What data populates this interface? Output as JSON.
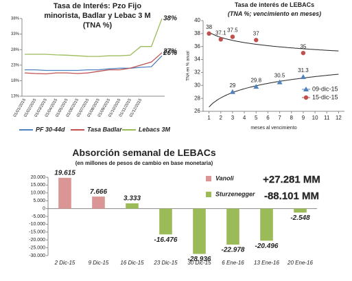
{
  "chart_data": [
    {
      "type": "line",
      "title": "Tasa de Interés: Pzo Fijo minorista, Badlar y Lebac 3 M (TNA %)",
      "categories": [
        "01/01/2015",
        "01/02/2015",
        "01/03/2015",
        "01/04/2015",
        "01/05/2015",
        "01/06/2015",
        "01/07/2015",
        "01/08/2015",
        "01/09/2015",
        "01/10/2015",
        "01/11/2015",
        "01/12/2015",
        null,
        null
      ],
      "series": [
        {
          "name": "PF 30-44d",
          "color": "#4f81bd",
          "values": [
            21.5,
            21.5,
            21.3,
            21.3,
            21.3,
            21.3,
            21.5,
            21.5,
            21.8,
            22,
            22,
            22.3,
            22.5,
            26
          ],
          "value_labels": [
            null,
            null,
            null,
            null,
            null,
            null,
            null,
            null,
            null,
            null,
            null,
            null,
            null,
            "26%"
          ]
        },
        {
          "name": "Tasa Badlar",
          "color": "#c0504d",
          "values": [
            20.5,
            20.3,
            20.2,
            20.5,
            20.5,
            20.3,
            20.5,
            21,
            21.5,
            21.5,
            22,
            23,
            24,
            27
          ],
          "value_labels": [
            null,
            null,
            null,
            null,
            null,
            null,
            null,
            null,
            null,
            null,
            null,
            null,
            null,
            "27%"
          ]
        },
        {
          "name": "Lebacs 3M",
          "color": "#9bbb59",
          "values": [
            26.5,
            26.5,
            26.5,
            26.3,
            26.2,
            26,
            25.8,
            25.8,
            26,
            26,
            26.2,
            29,
            29,
            38
          ],
          "value_labels": [
            null,
            null,
            null,
            null,
            null,
            null,
            null,
            null,
            null,
            null,
            null,
            null,
            null,
            "38%"
          ]
        }
      ],
      "ylim": [
        13,
        38
      ],
      "yticks": [
        {
          "value": 13,
          "label": "13%"
        },
        {
          "value": 18,
          "label": "18%"
        },
        {
          "value": 23,
          "label": "23%"
        },
        {
          "value": 28,
          "label": "28%"
        },
        {
          "value": 33,
          "label": "33%"
        },
        {
          "value": 38,
          "label": "38%"
        }
      ],
      "grid": false,
      "legend": "bottom"
    },
    {
      "type": "scatter",
      "title": "Tasa de interés de LEBACs",
      "subtitle": "(TNA %; vencimiento en meses)",
      "x_label": "meses al vencimiento",
      "y_label": "TNA en % anual",
      "series": [
        {
          "name": "09-dic-15",
          "color": "#4f81bd",
          "marker": "triangle",
          "trendline": "log",
          "x": [
            3,
            5,
            7,
            9
          ],
          "values": [
            29,
            29.8,
            30.5,
            31.3
          ]
        },
        {
          "name": "15-dic-15",
          "color": "#c0504d",
          "marker": "circle",
          "trendline": "log",
          "x": [
            1,
            2,
            3,
            5,
            9
          ],
          "values": [
            38,
            37.1,
            37.5,
            37,
            35
          ]
        }
      ],
      "xlim": [
        0.5,
        12.5
      ],
      "xticks": [
        1,
        2,
        3,
        4,
        5,
        6,
        7,
        8,
        9,
        10,
        11,
        12
      ],
      "ylim": [
        26,
        40
      ],
      "yticks": [
        26,
        28,
        30,
        32,
        34,
        36,
        38,
        40
      ],
      "grid": false,
      "legend": "right"
    },
    {
      "type": "bar",
      "title": "Absorción semanal de LEBACs",
      "subtitle": "(en millones de pesos de cambio en base monetaria)",
      "categories": [
        "2 Dic-15",
        "9 Dic-15",
        "16 Dic-15",
        "23 Dic-15",
        "30 Dic-15",
        "6 Ene-16",
        "13 Ene-16",
        "20 Ene-16"
      ],
      "series": [
        {
          "name": "Vanoli",
          "color": "#d99694",
          "values": [
            19615,
            7666,
            null,
            null,
            null,
            null,
            null,
            null
          ],
          "value_labels": [
            "19.615",
            "7.666",
            null,
            null,
            null,
            null,
            null,
            null
          ]
        },
        {
          "name": "Sturzenegger",
          "color": "#9bbb59",
          "values": [
            null,
            null,
            3333,
            -16476,
            -28936,
            -22978,
            -20496,
            -2548
          ],
          "value_labels": [
            null,
            null,
            "3.333",
            "-16.476",
            "-28.936",
            "-22.978",
            "-20.496",
            "-2.548"
          ]
        }
      ],
      "annotations": [
        {
          "text": "+27.281 MM",
          "color": "#c0504d"
        },
        {
          "text": "-88.101 MM",
          "color": "#9bbb59"
        }
      ],
      "ylim": [
        -30000,
        20000
      ],
      "yticks": [
        {
          "value": -30000,
          "label": "-30.000"
        },
        {
          "value": -25000,
          "label": "-25.000"
        },
        {
          "value": -20000,
          "label": "-20.000"
        },
        {
          "value": -15000,
          "label": "-15.000"
        },
        {
          "value": -10000,
          "label": "-10.000"
        },
        {
          "value": -5000,
          "label": "-5.000"
        },
        {
          "value": 0,
          "label": "0"
        },
        {
          "value": 5000,
          "label": "5.000"
        },
        {
          "value": 10000,
          "label": "10.000"
        },
        {
          "value": 15000,
          "label": "15.000"
        },
        {
          "value": 20000,
          "label": "20.000"
        }
      ],
      "grid": false,
      "legend": "top-right"
    }
  ]
}
